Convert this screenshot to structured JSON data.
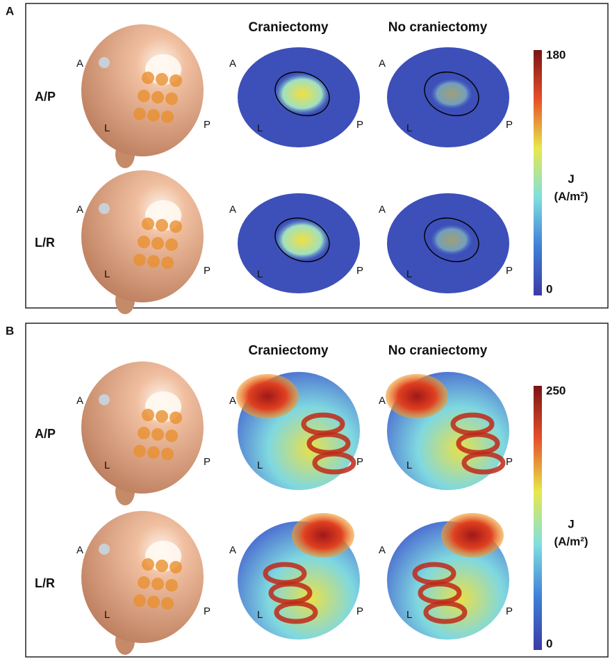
{
  "panels": [
    {
      "label": "A",
      "columns": [
        "Craniectomy",
        "No craniectomy"
      ],
      "rows": [
        {
          "label": "A/P",
          "views": [
            {
              "anterior": "A",
              "left": "L",
              "posterior": "P"
            },
            {
              "anterior": "A",
              "left": "L",
              "posterior": "P"
            },
            {
              "anterior": "A",
              "left": "L",
              "posterior": "P"
            }
          ]
        },
        {
          "label": "L/R",
          "views": [
            {
              "anterior": "A",
              "left": "L",
              "posterior": "P"
            },
            {
              "anterior": "A",
              "left": "L",
              "posterior": "P"
            },
            {
              "anterior": "A",
              "left": "L",
              "posterior": "P"
            }
          ]
        }
      ],
      "colorbar": {
        "title": "J",
        "unit": "(A/m²)",
        "max": 180,
        "min": 0
      }
    },
    {
      "label": "B",
      "columns": [
        "Craniectomy",
        "No craniectomy"
      ],
      "rows": [
        {
          "label": "A/P",
          "views": [
            {
              "anterior": "A",
              "left": "L",
              "posterior": "P"
            },
            {
              "anterior": "A",
              "left": "L",
              "posterior": "P"
            },
            {
              "anterior": "A",
              "left": "L",
              "posterior": "P"
            }
          ]
        },
        {
          "label": "L/R",
          "views": [
            {
              "anterior": "A",
              "left": "L",
              "posterior": "P"
            },
            {
              "anterior": "A",
              "left": "L",
              "posterior": "P"
            },
            {
              "anterior": "A",
              "left": "L",
              "posterior": "P"
            }
          ]
        }
      ],
      "colorbar": {
        "title": "J",
        "unit": "(A/m²)",
        "max": 250,
        "min": 0
      }
    }
  ]
}
